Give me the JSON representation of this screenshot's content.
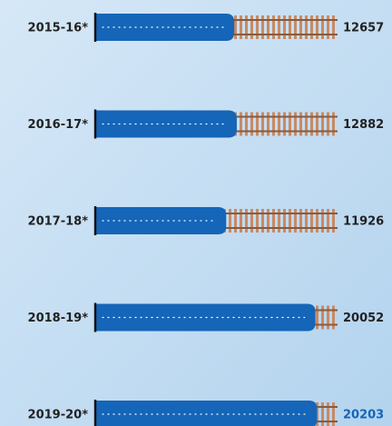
{
  "chart_data": {
    "type": "bar",
    "orientation": "horizontal",
    "categories": [
      "2015-16*",
      "2016-17*",
      "2017-18*",
      "2018-19*",
      "2019-20*"
    ],
    "values": [
      12657,
      12882,
      11926,
      20052,
      20203
    ],
    "color": "#1565b8",
    "label_colors": [
      "#222222",
      "#222222",
      "#222222",
      "#222222",
      "#1565b8"
    ]
  }
}
